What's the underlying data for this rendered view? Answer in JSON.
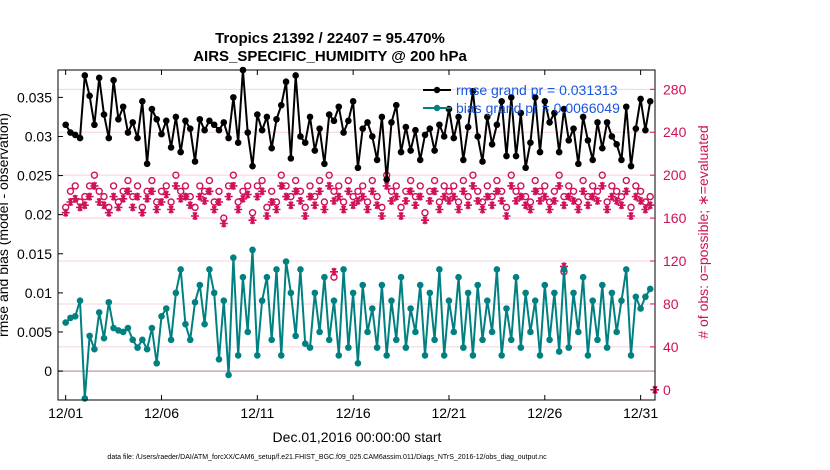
{
  "chart_data": {
    "type": "line",
    "title": "Tropics 21392 / 22407 = 95.470%",
    "subtitle": "AIRS_SPECIFIC_HUMIDITY @ 200 hPa",
    "xlabel": "Dec.01,2016 00:00:00 start",
    "ylabel": "rmse and bias (model - observation)",
    "ylabel_right": "# of obs: o=possible; ∗=evaluated",
    "footnote": "data file: /Users/raeder/DAI/ATM_forcXX/CAM6_setup/f.e21.FHIST_BGC.f09_025.CAM6assim.011/Diags_NTrS_2016-12/obs_diag_output.nc",
    "x_range": [
      0.6,
      31.75
    ],
    "ylim": [
      -0.0037,
      0.0385
    ],
    "ylim_right": [
      -9.5,
      298
    ],
    "x_ticks": [
      1,
      6,
      11,
      16,
      21,
      26,
      31
    ],
    "x_tick_labels": [
      "12/01",
      "12/06",
      "12/11",
      "12/16",
      "12/21",
      "12/26",
      "12/31"
    ],
    "y_ticks": [
      0,
      0.005,
      0.01,
      0.015,
      0.02,
      0.025,
      0.03,
      0.035
    ],
    "y_tick_labels": [
      "0",
      "0.005",
      "0.01",
      "0.015",
      "0.02",
      "0.025",
      "0.03",
      "0.035"
    ],
    "y_ticks_right": [
      0,
      40,
      80,
      120,
      160,
      200,
      240,
      280
    ],
    "y_tick_labels_right": [
      "0",
      "40",
      "80",
      "120",
      "160",
      "200",
      "240",
      "280"
    ],
    "legend": [
      {
        "label": "rmse grand pr = 0.031313",
        "color": "#000000"
      },
      {
        "label": "bias grand pr = 0.0066049",
        "color": "#008080"
      }
    ],
    "x": [
      1.0,
      1.25,
      1.5,
      1.75,
      2.0,
      2.25,
      2.5,
      2.75,
      3.0,
      3.25,
      3.5,
      3.75,
      4.0,
      4.25,
      4.5,
      4.75,
      5.0,
      5.25,
      5.5,
      5.75,
      6.0,
      6.25,
      6.5,
      6.75,
      7.0,
      7.25,
      7.5,
      7.75,
      8.0,
      8.25,
      8.5,
      8.75,
      9.0,
      9.25,
      9.5,
      9.75,
      10.0,
      10.25,
      10.5,
      10.75,
      11.0,
      11.25,
      11.5,
      11.75,
      12.0,
      12.25,
      12.5,
      12.75,
      13.0,
      13.25,
      13.5,
      13.75,
      14.0,
      14.25,
      14.5,
      14.75,
      15.0,
      15.25,
      15.5,
      15.75,
      16.0,
      16.25,
      16.5,
      16.75,
      17.0,
      17.25,
      17.5,
      17.75,
      18.0,
      18.25,
      18.5,
      18.75,
      19.0,
      19.25,
      19.5,
      19.75,
      20.0,
      20.25,
      20.5,
      20.75,
      21.0,
      21.25,
      21.5,
      21.75,
      22.0,
      22.25,
      22.5,
      22.75,
      23.0,
      23.25,
      23.5,
      23.75,
      24.0,
      24.25,
      24.5,
      24.75,
      25.0,
      25.25,
      25.5,
      25.75,
      26.0,
      26.25,
      26.5,
      26.75,
      27.0,
      27.25,
      27.5,
      27.75,
      28.0,
      28.25,
      28.5,
      28.75,
      29.0,
      29.25,
      29.5,
      29.75,
      30.0,
      30.25,
      30.5,
      30.75,
      31.0,
      31.25,
      31.5
    ],
    "series": [
      {
        "name": "rmse",
        "axis": "left",
        "color": "#000000",
        "values": [
          0.0315,
          0.0305,
          0.0302,
          0.0298,
          0.0378,
          0.0352,
          0.0315,
          0.0375,
          0.0328,
          0.0298,
          0.0372,
          0.0322,
          0.0338,
          0.0305,
          0.0318,
          0.0298,
          0.0345,
          0.0265,
          0.0335,
          0.0322,
          0.0303,
          0.032,
          0.0286,
          0.0325,
          0.028,
          0.032,
          0.031,
          0.0268,
          0.0322,
          0.0308,
          0.032,
          0.0315,
          0.0308,
          0.0318,
          0.0298,
          0.035,
          0.0292,
          0.0385,
          0.0305,
          0.0262,
          0.0328,
          0.0308,
          0.0325,
          0.0285,
          0.0322,
          0.034,
          0.037,
          0.0272,
          0.0378,
          0.03,
          0.0292,
          0.0325,
          0.0282,
          0.031,
          0.0265,
          0.0328,
          0.032,
          0.0338,
          0.0305,
          0.032,
          0.0345,
          0.026,
          0.031,
          0.0318,
          0.03,
          0.027,
          0.0325,
          0.0245,
          0.0318,
          0.034,
          0.028,
          0.0312,
          0.0282,
          0.0308,
          0.027,
          0.0302,
          0.031,
          0.0282,
          0.0315,
          0.03,
          0.0335,
          0.0298,
          0.0325,
          0.027,
          0.0312,
          0.0358,
          0.03,
          0.0268,
          0.0325,
          0.029,
          0.0315,
          0.0345,
          0.0275,
          0.035,
          0.0275,
          0.033,
          0.026,
          0.0292,
          0.035,
          0.028,
          0.0345,
          0.0318,
          0.033,
          0.028,
          0.0335,
          0.0295,
          0.031,
          0.0265,
          0.0325,
          0.0295,
          0.027,
          0.0318,
          0.0285,
          0.0318,
          0.03,
          0.029,
          0.027,
          0.0338,
          0.0262,
          0.031,
          0.0348,
          0.0308,
          0.0345
        ]
      },
      {
        "name": "bias",
        "axis": "left",
        "color": "#008080",
        "values": [
          0.0062,
          0.0068,
          0.007,
          0.009,
          -0.0035,
          0.0045,
          0.0028,
          0.0075,
          0.0042,
          0.0088,
          0.0055,
          0.0052,
          0.005,
          0.0055,
          0.004,
          0.003,
          0.004,
          0.0028,
          0.0055,
          0.001,
          0.007,
          0.008,
          0.004,
          0.01,
          0.013,
          0.006,
          0.004,
          0.0088,
          0.011,
          0.006,
          0.013,
          0.01,
          0.0015,
          0.009,
          -0.0005,
          0.0145,
          0.002,
          0.012,
          0.005,
          0.0155,
          0.002,
          0.009,
          0.012,
          0.004,
          0.013,
          0.002,
          0.014,
          0.01,
          0.0045,
          0.013,
          0.0035,
          0.003,
          0.01,
          0.005,
          0.012,
          0.004,
          0.009,
          0.002,
          0.013,
          0.003,
          0.01,
          0.001,
          0.011,
          0.005,
          0.008,
          0.003,
          0.011,
          0.002,
          0.009,
          0.004,
          0.012,
          0.003,
          0.008,
          0.005,
          0.011,
          0.002,
          0.01,
          0.004,
          0.013,
          0.002,
          0.009,
          0.005,
          0.012,
          0.003,
          0.01,
          0.002,
          0.011,
          0.004,
          0.009,
          0.005,
          0.013,
          0.002,
          0.008,
          0.004,
          0.012,
          0.003,
          0.01,
          0.005,
          0.009,
          0.002,
          0.011,
          0.004,
          0.01,
          0.0025,
          0.013,
          0.003,
          0.01,
          0.005,
          0.012,
          0.002,
          0.009,
          0.004,
          0.011,
          0.003,
          0.01,
          0.005,
          0.009,
          0.013,
          0.002,
          0.0095,
          0.008,
          0.0095,
          0.0105
        ]
      },
      {
        "name": "obs possible",
        "axis": "right",
        "color": "#d0105a",
        "marker": "o",
        "values": [
          170,
          185,
          190,
          175,
          180,
          190,
          200,
          185,
          180,
          170,
          190,
          175,
          185,
          195,
          180,
          190,
          170,
          185,
          195,
          175,
          185,
          190,
          175,
          200,
          185,
          190,
          180,
          170,
          190,
          185,
          195,
          175,
          185,
          160,
          190,
          200,
          175,
          185,
          190,
          165,
          190,
          195,
          170,
          185,
          175,
          200,
          190,
          180,
          195,
          185,
          170,
          190,
          180,
          195,
          175,
          200,
          185,
          190,
          175,
          195,
          180,
          185,
          190,
          175,
          195,
          180,
          170,
          200,
          185,
          190,
          170,
          185,
          195,
          180,
          190,
          165,
          185,
          195,
          175,
          190,
          185,
          190,
          175,
          195,
          180,
          200,
          185,
          175,
          190,
          180,
          195,
          185,
          170,
          200,
          185,
          190,
          180,
          175,
          195,
          185,
          190,
          175,
          185,
          200,
          180,
          190,
          185,
          175,
          195,
          180,
          190,
          185,
          200,
          175,
          190,
          185,
          180,
          195,
          170,
          190,
          185,
          175,
          180
        ]
      },
      {
        "name": "obs evaluated",
        "axis": "right",
        "color": "#d0105a",
        "marker": "*",
        "values": [
          165,
          175,
          178,
          170,
          172,
          180,
          190,
          175,
          172,
          165,
          180,
          170,
          178,
          185,
          170,
          180,
          165,
          178,
          185,
          168,
          175,
          182,
          168,
          190,
          178,
          180,
          172,
          162,
          180,
          176,
          185,
          168,
          175,
          155,
          180,
          190,
          168,
          178,
          182,
          158,
          180,
          185,
          162,
          175,
          168,
          190,
          180,
          172,
          185,
          176,
          162,
          180,
          172,
          185,
          168,
          190,
          176,
          180,
          168,
          185,
          172,
          176,
          180,
          168,
          185,
          172,
          162,
          190,
          176,
          180,
          162,
          176,
          185,
          172,
          180,
          158,
          176,
          185,
          168,
          180,
          176,
          180,
          168,
          185,
          172,
          190,
          176,
          168,
          180,
          172,
          185,
          176,
          162,
          190,
          176,
          180,
          172,
          168,
          185,
          176,
          180,
          168,
          176,
          190,
          172,
          180,
          176,
          168,
          185,
          172,
          180,
          176,
          190,
          168,
          180,
          176,
          172,
          185,
          162,
          180,
          176,
          168,
          172
        ]
      }
    ],
    "extra_points": [
      {
        "series": "obs possible",
        "x": 15.0,
        "y": 105
      },
      {
        "series": "obs evaluated",
        "x": 15.0,
        "y": 110
      },
      {
        "series": "obs possible",
        "x": 27.0,
        "y": 110
      },
      {
        "series": "obs evaluated",
        "x": 27.0,
        "y": 115
      },
      {
        "series": "obs evaluated",
        "x": 31.75,
        "y": 0
      }
    ]
  }
}
